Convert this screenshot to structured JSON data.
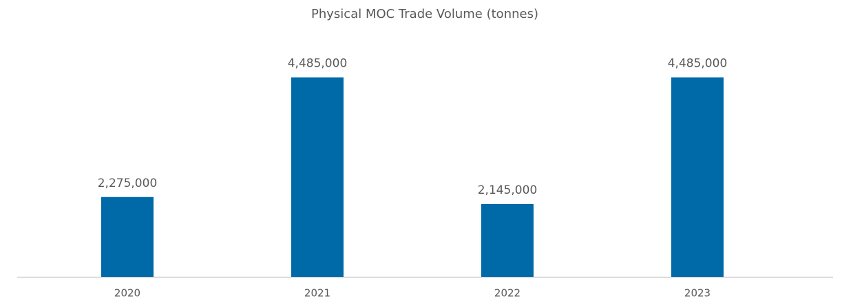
{
  "chart_data": {
    "type": "bar",
    "title": "Physical MOC Trade Volume (tonnes)",
    "categories": [
      "2020",
      "2021",
      "2022",
      "2023"
    ],
    "values": [
      2275000,
      4485000,
      2145000,
      4485000
    ],
    "value_labels": [
      "2,275,000",
      "4,485,000",
      "2,145,000",
      "4,485,000"
    ],
    "color": "#006aa9",
    "ylim": [
      800000,
      5000000
    ],
    "grid": false
  }
}
